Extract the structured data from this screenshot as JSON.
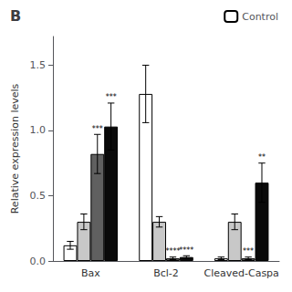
{
  "chart_data": {
    "type": "bar",
    "title": "B",
    "ylabel": "Relative expression levels",
    "categories": [
      "Bax",
      "Bcl-2",
      "Cleaved-Caspa"
    ],
    "series": [
      {
        "name": "Control",
        "color": "white",
        "values": [
          0.12,
          1.28,
          0.02
        ],
        "errors": [
          0.03,
          0.22,
          0.01
        ]
      },
      {
        "color": "#c8c8c8",
        "values": [
          0.3,
          0.3,
          0.3
        ],
        "errors": [
          0.06,
          0.04,
          0.06
        ]
      },
      {
        "color": "#606060",
        "values": [
          0.82,
          0.02,
          0.02
        ],
        "errors": [
          0.15,
          0.01,
          0.01
        ],
        "annotations": [
          "***",
          "****",
          "***"
        ]
      },
      {
        "color": "#0a0a0a",
        "values": [
          1.03,
          0.03,
          0.6
        ],
        "errors": [
          0.18,
          0.01,
          0.15
        ],
        "annotations": [
          "***",
          "****",
          "**"
        ]
      }
    ],
    "ylim": [
      0,
      1.72
    ],
    "yticks": [
      {
        "value": 0,
        "label": "0.0"
      },
      0.5,
      {
        "value": 1,
        "label": "1.0"
      },
      1.5
    ],
    "grid": false,
    "legend": "upper right"
  }
}
